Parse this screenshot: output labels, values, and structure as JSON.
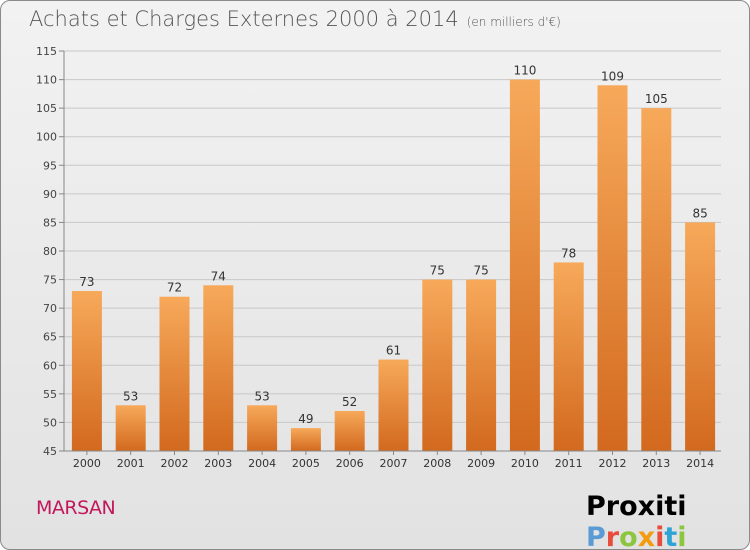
{
  "header": {
    "title": "Achats et Charges Externes 2000 à 2014",
    "subtitle": "(en milliers d'€)"
  },
  "footer": {
    "place": "MARSAN",
    "logo": "Proxiti"
  },
  "colors": {
    "bar_top": "#f7a95a",
    "bar_bottom": "#d2691e",
    "logo_letters": [
      "#5b9bd5",
      "#e84c3d",
      "#8cc63f",
      "#f39c12",
      "#e84c3d",
      "#2ea3d6",
      "#8cc63f"
    ]
  },
  "chart_data": {
    "type": "bar",
    "title": "Achats et Charges Externes 2000 à 2014",
    "subtitle": "(en milliers d'€)",
    "categories": [
      "2000",
      "2001",
      "2002",
      "2003",
      "2004",
      "2005",
      "2006",
      "2007",
      "2008",
      "2009",
      "2010",
      "2011",
      "2012",
      "2013",
      "2014"
    ],
    "values": [
      73,
      53,
      72,
      74,
      53,
      49,
      52,
      61,
      75,
      75,
      110,
      78,
      109,
      105,
      85
    ],
    "ylim": [
      45,
      115
    ],
    "yticks": [
      45,
      50,
      55,
      60,
      65,
      70,
      75,
      80,
      85,
      90,
      95,
      100,
      105,
      110,
      115
    ],
    "grid": true,
    "data_labels": true
  }
}
